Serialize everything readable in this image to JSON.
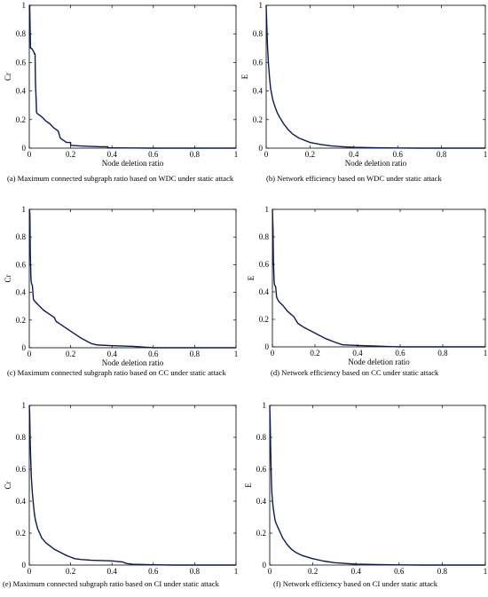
{
  "chart_data": [
    {
      "type": "line",
      "caption": "(a)  Maximum connected subgraph ratio based on WDC under static attack",
      "xlabel": "Node deletion ratio",
      "ylabel": "Cr",
      "xlim": [
        0,
        1
      ],
      "ylim": [
        0,
        1
      ],
      "xticks": [
        "0",
        "0.2",
        "0.4",
        "0.6",
        "0.8",
        "1"
      ],
      "yticks": [
        "0",
        "0.2",
        "0.4",
        "0.6",
        "0.8",
        "1"
      ],
      "series": [
        {
          "x": [
            0,
            0.002,
            0.004,
            0.006,
            0.01,
            0.02,
            0.025,
            0.028,
            0.03,
            0.033,
            0.035,
            0.04,
            0.06,
            0.08,
            0.1,
            0.12,
            0.14,
            0.15,
            0.16,
            0.18,
            0.2,
            0.2,
            0.25,
            0.3,
            0.35,
            0.38,
            0.38,
            0.4,
            0.5,
            0.6,
            0.7,
            0.8,
            0.9,
            1.0
          ],
          "y": [
            1.0,
            1.0,
            0.85,
            0.7,
            0.7,
            0.68,
            0.66,
            0.66,
            0.45,
            0.35,
            0.25,
            0.24,
            0.22,
            0.19,
            0.17,
            0.14,
            0.12,
            0.07,
            0.06,
            0.04,
            0.04,
            0.02,
            0.015,
            0.012,
            0.01,
            0.01,
            0.003,
            0.002,
            0.001,
            0.0,
            0.0,
            0.0,
            0.0,
            0.0
          ]
        }
      ]
    },
    {
      "type": "line",
      "caption": "(b) Network efficiency based on WDC under static attack",
      "xlabel": "Node deletion ratio",
      "ylabel": "E",
      "xlim": [
        0,
        1
      ],
      "ylim": [
        0,
        1
      ],
      "xticks": [
        "0",
        "0.2",
        "0.4",
        "0.6",
        "0.8",
        "1"
      ],
      "yticks": [
        "0",
        "0.2",
        "0.4",
        "0.6",
        "0.8",
        "1"
      ],
      "series": [
        {
          "x": [
            0,
            0.003,
            0.006,
            0.01,
            0.015,
            0.02,
            0.03,
            0.04,
            0.05,
            0.06,
            0.08,
            0.1,
            0.12,
            0.15,
            0.2,
            0.25,
            0.3,
            0.35,
            0.4,
            0.5,
            0.6,
            0.7,
            0.8,
            0.9,
            1.0
          ],
          "y": [
            1.0,
            0.85,
            0.72,
            0.6,
            0.5,
            0.42,
            0.34,
            0.29,
            0.25,
            0.22,
            0.17,
            0.13,
            0.1,
            0.07,
            0.04,
            0.025,
            0.015,
            0.01,
            0.006,
            0.003,
            0.001,
            0.0,
            0.0,
            0.0,
            0.0
          ]
        }
      ]
    },
    {
      "type": "line",
      "caption": "(c) Maximum connected subgraph ratio based on CC under static attack",
      "xlabel": "Node deletion ratio",
      "ylabel": "Cr",
      "xlim": [
        0,
        1
      ],
      "ylim": [
        0,
        1
      ],
      "xticks": [
        "0",
        "0.2",
        "0.4",
        "0.6",
        "0.8",
        "1"
      ],
      "yticks": [
        "0",
        "0.2",
        "0.4",
        "0.6",
        "0.8",
        "1"
      ],
      "series": [
        {
          "x": [
            0,
            0.003,
            0.005,
            0.008,
            0.01,
            0.012,
            0.015,
            0.02,
            0.03,
            0.05,
            0.07,
            0.1,
            0.12,
            0.13,
            0.15,
            0.2,
            0.25,
            0.3,
            0.33,
            0.4,
            0.5,
            0.55,
            0.6,
            0.7,
            0.8,
            0.9,
            1.0
          ],
          "y": [
            1.0,
            0.97,
            0.68,
            0.5,
            0.47,
            0.46,
            0.45,
            0.35,
            0.33,
            0.3,
            0.27,
            0.24,
            0.22,
            0.19,
            0.17,
            0.12,
            0.07,
            0.03,
            0.02,
            0.015,
            0.01,
            0.005,
            0.0,
            0.0,
            0.0,
            0.0,
            0.0
          ]
        }
      ]
    },
    {
      "type": "line",
      "caption": "(d) Network efficiency based on CC under static attack",
      "xlabel": "Node deletion ratio",
      "ylabel": "E",
      "xlim": [
        0,
        1
      ],
      "ylim": [
        0,
        1
      ],
      "xticks": [
        "0",
        "0.2",
        "0.4",
        "0.6",
        "0.8",
        "1"
      ],
      "yticks": [
        "0",
        "0.2",
        "0.4",
        "0.6",
        "0.8",
        "1"
      ],
      "series": [
        {
          "x": [
            0,
            0.003,
            0.005,
            0.008,
            0.01,
            0.015,
            0.02,
            0.03,
            0.05,
            0.07,
            0.1,
            0.12,
            0.15,
            0.2,
            0.25,
            0.3,
            0.33,
            0.4,
            0.5,
            0.55,
            0.6,
            0.7,
            0.8,
            0.9,
            1.0
          ],
          "y": [
            1.0,
            0.85,
            0.62,
            0.48,
            0.45,
            0.44,
            0.36,
            0.33,
            0.3,
            0.26,
            0.22,
            0.17,
            0.14,
            0.1,
            0.06,
            0.03,
            0.015,
            0.01,
            0.005,
            0.002,
            0.0,
            0.0,
            0.0,
            0.0,
            0.0
          ]
        }
      ]
    },
    {
      "type": "line",
      "caption": "(e) Maximum connected subgraph ratio based on CI under static attack",
      "xlabel": "",
      "ylabel": "Cr",
      "xlim": [
        0,
        1
      ],
      "ylim": [
        0,
        1
      ],
      "xticks": [
        "0",
        "0.2",
        "0.4",
        "0.6",
        "0.8",
        "1"
      ],
      "yticks": [
        "0",
        "0.2",
        "0.4",
        "0.6",
        "0.8",
        "1"
      ],
      "series": [
        {
          "x": [
            0,
            0.002,
            0.004,
            0.006,
            0.008,
            0.01,
            0.015,
            0.02,
            0.025,
            0.03,
            0.04,
            0.05,
            0.06,
            0.08,
            0.1,
            0.12,
            0.15,
            0.18,
            0.2,
            0.22,
            0.25,
            0.3,
            0.35,
            0.4,
            0.45,
            0.47,
            0.5,
            0.6,
            0.7,
            0.8,
            0.9,
            1.0
          ],
          "y": [
            1.0,
            0.95,
            0.8,
            0.7,
            0.62,
            0.55,
            0.45,
            0.38,
            0.32,
            0.28,
            0.23,
            0.2,
            0.17,
            0.14,
            0.12,
            0.1,
            0.08,
            0.06,
            0.05,
            0.04,
            0.035,
            0.03,
            0.028,
            0.026,
            0.02,
            0.01,
            0.005,
            0.002,
            0.0,
            0.0,
            0.0,
            0.0
          ]
        }
      ]
    },
    {
      "type": "line",
      "caption": "(f) Network efficiency based on CI under static attack",
      "xlabel": "",
      "ylabel": "E",
      "xlim": [
        0,
        1
      ],
      "ylim": [
        0,
        1
      ],
      "xticks": [
        "0",
        "0.2",
        "0.4",
        "0.6",
        "0.8",
        "1"
      ],
      "yticks": [
        "0",
        "0.2",
        "0.4",
        "0.6",
        "0.8",
        "1"
      ],
      "series": [
        {
          "x": [
            0,
            0.002,
            0.004,
            0.006,
            0.008,
            0.01,
            0.015,
            0.02,
            0.025,
            0.03,
            0.04,
            0.05,
            0.06,
            0.08,
            0.1,
            0.12,
            0.15,
            0.2,
            0.25,
            0.3,
            0.35,
            0.4,
            0.5,
            0.6,
            0.7,
            0.8,
            0.9,
            1.0
          ],
          "y": [
            1.0,
            0.9,
            0.75,
            0.62,
            0.52,
            0.45,
            0.37,
            0.32,
            0.28,
            0.26,
            0.23,
            0.2,
            0.17,
            0.13,
            0.1,
            0.08,
            0.06,
            0.04,
            0.025,
            0.015,
            0.01,
            0.006,
            0.003,
            0.001,
            0.0,
            0.0,
            0.0,
            0.0
          ]
        }
      ]
    }
  ],
  "style": {
    "line_color": "#0d1b4a",
    "axis_color": "#000000"
  }
}
